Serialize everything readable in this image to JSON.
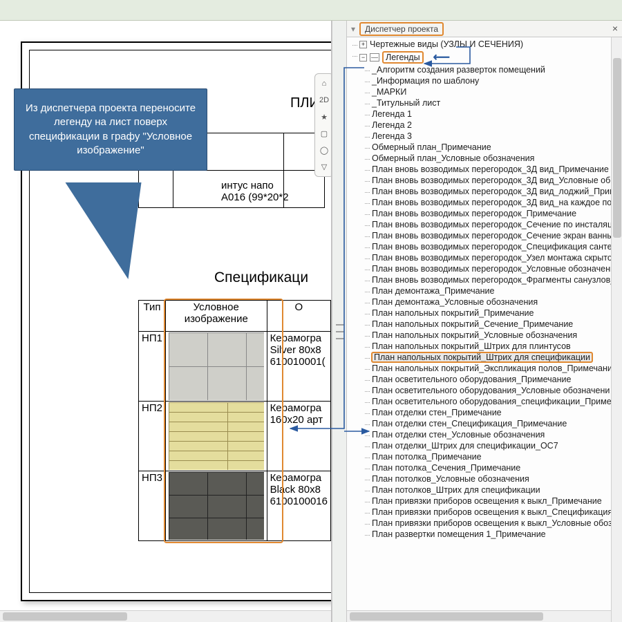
{
  "callout": {
    "text": "Из диспетчера проекта переносите легенду на лист поверх спецификации в графу \"Условное изображение\"",
    "bg": "#3f6d9c"
  },
  "panel": {
    "title": "Диспетчер проекта",
    "close": "×"
  },
  "sheet": {
    "plinth_title": "ПЛИН",
    "plinth_line1": "интус напо",
    "plinth_line2": "А016 (99*20*2",
    "spec_title": "Спецификаци"
  },
  "spec": {
    "h_type": "Тип",
    "h_image_l1": "Условное",
    "h_image_l2": "изображение",
    "h_desc": "О",
    "rows": [
      {
        "type": "НП1",
        "d1": "Керамогра",
        "d2": "Silver 80x8",
        "d3": "610010001(",
        "sw": "tile-grey"
      },
      {
        "type": "НП2",
        "d1": "Керамогра",
        "d2": "160x20 арт",
        "d3": "",
        "sw": "tile-yellow"
      },
      {
        "type": "НП3",
        "d1": "Керамогра",
        "d2": "Black 80x8",
        "d3": "6100100016",
        "sw": "tile-dark"
      }
    ]
  },
  "tree": {
    "top_parent": "Чертежные виды (УЗЛЫ И СЕЧЕНИЯ)",
    "legends_label": "Легенды",
    "items": [
      "_Алгоритм создания разверток помещений",
      "_Информация по шаблону",
      "_МАРКИ",
      "_Титульный лист",
      "Легенда 1",
      "Легенда 2",
      "Легенда 3",
      "Обмерный план_Примечание",
      "Обмерный план_Условные обозначения",
      "План вновь возводимых перегородок_3Д вид_Примечание",
      "План вновь возводимых перегородок_3Д вид_Условные об",
      "План вновь возводимых перегородок_3Д вид_лоджий_Прим",
      "План вновь возводимых перегородок_3Д вид_на каждое по",
      "План вновь возводимых перегородок_Примечание",
      "План вновь возводимых перегородок_Сечение по инсталяц",
      "План вновь возводимых перегородок_Сечение экран ванны",
      "План вновь возводимых перегородок_Спецификация сантех",
      "План вновь возводимых перегородок_Узел монтажа скрыто",
      "План вновь возводимых перегородок_Условные обозначени",
      "План вновь возводимых перегородок_Фрагменты санузлов_",
      "План демонтажа_Примечание",
      "План демонтажа_Условные обозначения",
      "План напольных покрытий_Примечание",
      "План напольных покрытий_Сечение_Примечание",
      "План напольных покрытий_Условные обозначения",
      "План напольных покрытий_Штрих для плинтусов",
      "План напольных покрытий_Штрих для спецификации",
      "План напольных покрытий_Экспликация полов_Примечани",
      "План осветительного оборудования_Примечание",
      "План осветительного оборудования_Условные обозначени",
      "План осветительного оборудования_спецификации_Примеч",
      "План отделки стен_Примечание",
      "План отделки стен_Спецификация_Примечание",
      "План отделки стен_Условные обозначения",
      "План отделки_Штрих для спецификации_ОС7",
      "План потолка_Примечание",
      "План потолка_Сечения_Примечание",
      "План потолков_Условные обозначения",
      "План потолков_Штрих для спецификации",
      "План привязки приборов освещения к выкл_Примечание",
      "План привязки приборов освещения к выкл_Спецификация_",
      "План привязки приборов освещения к выкл_Условные обоз",
      "План развертки помещения 1_Примечание"
    ],
    "highlighted_index": 26
  },
  "toolbar": {
    "items": [
      "⌂",
      "2D",
      "★",
      "▢",
      "◯",
      "▽"
    ]
  },
  "colors": {
    "highlight_border": "#e08830",
    "connector": "#2a5aa0"
  }
}
